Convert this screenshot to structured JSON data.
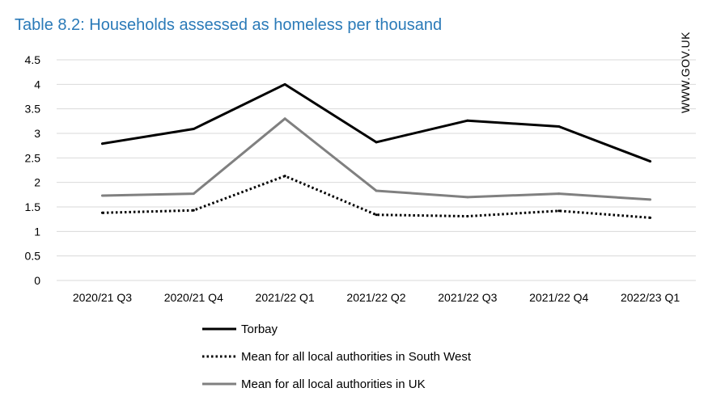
{
  "chart_data": {
    "type": "line",
    "title": "Table 8.2: Households assessed as homeless per thousand",
    "watermark": "WWW.GOV.UK",
    "xlabel": "",
    "ylabel": "",
    "ylim": [
      0,
      4.5
    ],
    "yticks": [
      "0",
      "0.5",
      "1",
      "1.5",
      "2",
      "2.5",
      "3",
      "3.5",
      "4",
      "4.5"
    ],
    "grid": true,
    "legend_position": "bottom",
    "categories": [
      "2020/21 Q3",
      "2020/21 Q4",
      "2021/22 Q1",
      "2021/22 Q2",
      "2021/22 Q3",
      "2021/22 Q4",
      "2022/23 Q1"
    ],
    "series": [
      {
        "name": "Torbay",
        "color": "#000000",
        "style": "solid",
        "values": [
          2.79,
          3.09,
          4.0,
          2.82,
          3.26,
          3.14,
          2.43
        ]
      },
      {
        "name": "Mean for all local authorities in South West",
        "color": "#000000",
        "style": "dotted",
        "values": [
          1.38,
          1.43,
          2.13,
          1.34,
          1.31,
          1.42,
          1.28
        ]
      },
      {
        "name": "Mean for all local authorities in UK",
        "color": "#808080",
        "style": "solid",
        "values": [
          1.73,
          1.77,
          3.3,
          1.83,
          1.7,
          1.77,
          1.65
        ]
      }
    ]
  }
}
